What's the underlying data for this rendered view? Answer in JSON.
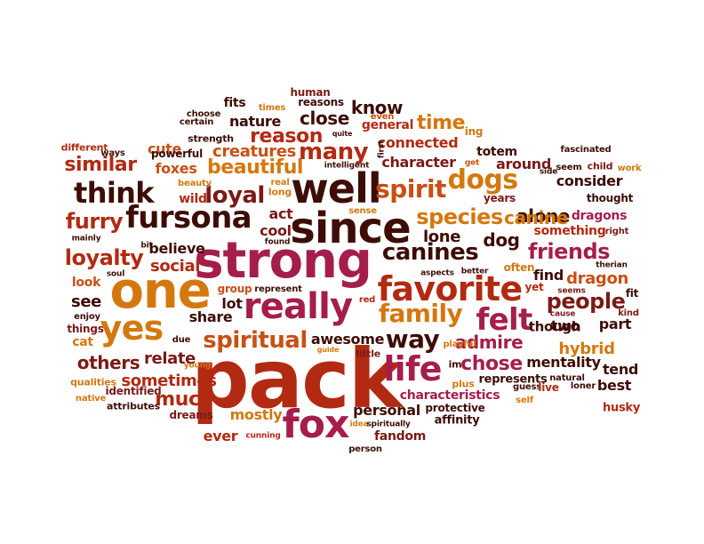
{
  "words": [
    "pack",
    "strong",
    "one",
    "since",
    "well",
    "really",
    "favorite",
    "fox",
    "fursona",
    "life",
    "felt",
    "yes",
    "spiritual",
    "think",
    "family",
    "dogs",
    "spirit",
    "people",
    "friends",
    "species",
    "way",
    "loyal",
    "furry",
    "loyalty",
    "canines",
    "beautiful",
    "reason",
    "many",
    "similar",
    "others",
    "chose",
    "much",
    "close",
    "time",
    "know",
    "admire",
    "relate",
    "sometimes",
    "foxes",
    "creatures",
    "alone",
    "canine",
    "dragon",
    "hybrid",
    "social",
    "believe",
    "act",
    "cool",
    "lone",
    "dog",
    "share",
    "lot",
    "see",
    "look",
    "nature",
    "cute",
    "character",
    "consider",
    "around",
    "connected",
    "general",
    "totem",
    "tend",
    "part",
    "find",
    "mentality",
    "two",
    "best",
    "awesome",
    "personal",
    "characteristics",
    "fandom",
    "ever",
    "mostly",
    "identified",
    "dreams",
    "attributes",
    "cat",
    "things",
    "enjoy",
    "human",
    "reasons",
    "fits",
    "choose",
    "certain",
    "strength",
    "powerful",
    "different",
    "ways",
    "beauty",
    "wild",
    "real",
    "long",
    "sense",
    "years",
    "thought",
    "seem",
    "child",
    "work",
    "fascinated",
    "first",
    "side",
    "get",
    "intelligent",
    "quite",
    "even",
    "times",
    "ing",
    "dragons",
    "something",
    "right",
    "bit",
    "mainly",
    "found",
    "represent",
    "group",
    "soul",
    "aspects",
    "better",
    "often",
    "yet",
    "therian",
    "seems",
    "fit",
    "kind",
    "red",
    "cause",
    "though",
    "qualities",
    "native",
    "due",
    "young",
    "guide",
    "idea",
    "little",
    "playful",
    "im",
    "plus",
    "represents",
    "natural",
    "loner",
    "guess",
    "live",
    "self",
    "spiritually",
    "affinity",
    "protective",
    "person",
    "cunning",
    "husky"
  ]
}
